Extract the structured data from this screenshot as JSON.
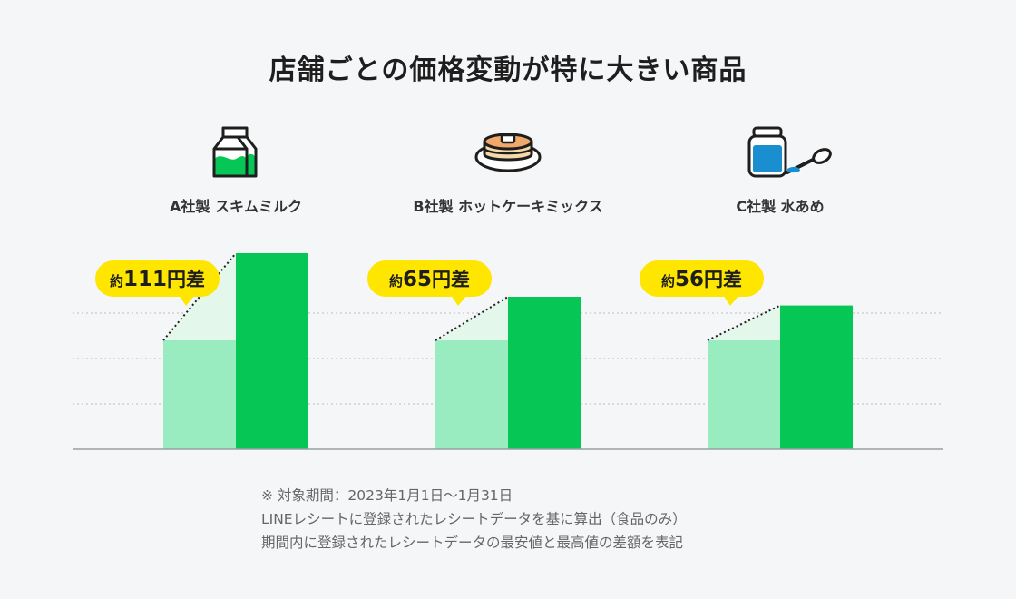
{
  "title": "店舗ごとの価格変動が特に大きい商品",
  "products": [
    {
      "label": "A社製 スキムミルク",
      "icon": "milk-carton-icon",
      "badge_prefix": "約",
      "badge_value": "111",
      "badge_suffix": "円差"
    },
    {
      "label": "B社製 ホットケーキミックス",
      "icon": "pancake-icon",
      "badge_prefix": "約",
      "badge_value": "65",
      "badge_suffix": "円差"
    },
    {
      "label": "C社製 水あめ",
      "icon": "syrup-jar-icon",
      "badge_prefix": "約",
      "badge_value": "56",
      "badge_suffix": "円差"
    }
  ],
  "notes": [
    "※ 対象期間：2023年1月1日〜1月31日",
    "LINEレシートに登録されたレシートデータを基に算出（食品のみ）",
    "期間内に登録されたレシートデータの最安値と最高値の差額を表記"
  ],
  "colors": {
    "high_bar": "#06c755",
    "low_bar": "#98ecc0",
    "gap_fill": "#e3f7ea",
    "badge": "#ffe600",
    "background": "#f4f6f8"
  },
  "chart_data": {
    "type": "bar",
    "categories": [
      "A社製 スキムミルク",
      "B社製 ホットケーキミックス",
      "C社製 水あめ"
    ],
    "series": [
      {
        "values": [
          1.0,
          1.0,
          1.0
        ]
      },
      {
        "values": [
          1.8,
          1.4,
          1.32
        ]
      }
    ],
    "annotations": [
      "約111円差",
      "約65円差",
      "約56円差"
    ],
    "ylim": [
      0,
      2
    ],
    "grid": true,
    "legend": "none"
  }
}
